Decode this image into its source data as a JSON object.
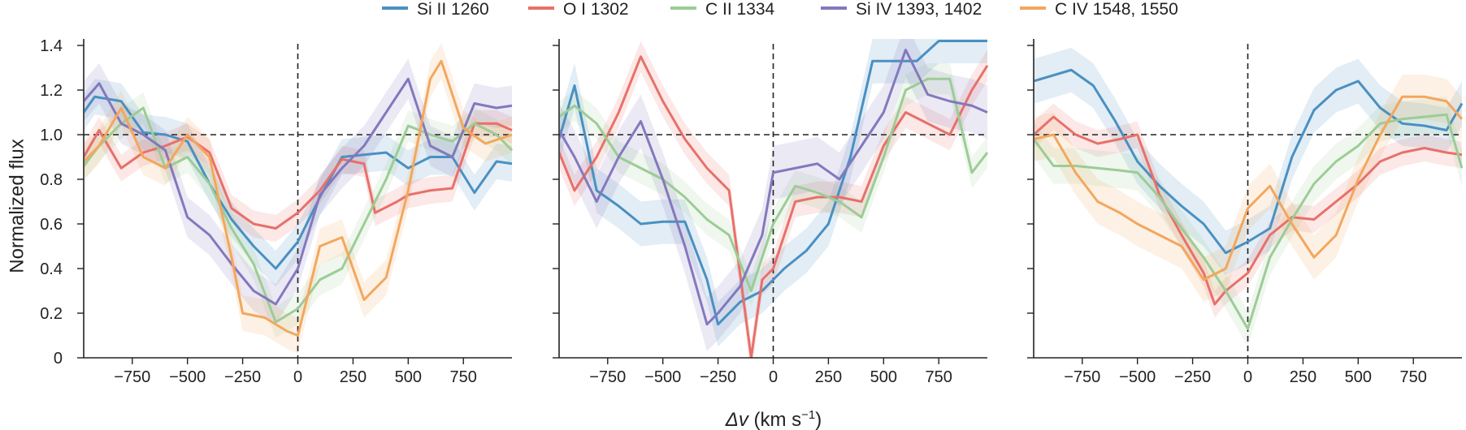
{
  "chart_data": {
    "type": "line",
    "ylabel": "Normalized flux",
    "xlabel_main": "Δv",
    "xlabel_unit": " (km s",
    "xlabel_exp": "−1",
    "xlabel_close": ")",
    "xlim": [
      -970,
      970
    ],
    "ylim": [
      0,
      1.4
    ],
    "x_ticks": [
      -750,
      -500,
      -250,
      0,
      250,
      500,
      750
    ],
    "x_tick_labels": [
      "−750",
      "−500",
      "−250",
      "0",
      "250",
      "500",
      "750"
    ],
    "y_ticks": [
      0,
      0.2,
      0.4,
      0.6,
      0.8,
      1.0,
      1.2,
      1.4
    ],
    "y_tick_labels": [
      "0",
      "0.2",
      "0.4",
      "0.6",
      "0.8",
      "1.0",
      "1.2",
      "1.4"
    ],
    "reference_lines": {
      "x": 0,
      "y": 1.0
    },
    "legend": [
      {
        "name": "Si II 1260",
        "color": "#4a90c2"
      },
      {
        "name": "O I 1302",
        "color": "#e8706a"
      },
      {
        "name": "C II 1334",
        "color": "#9ccc96"
      },
      {
        "name": "Si IV 1393, 1402",
        "color": "#8478bd"
      },
      {
        "name": "C IV 1548, 1550",
        "color": "#f2a75e"
      }
    ],
    "panels": [
      {
        "series": [
          {
            "legend_index": 0,
            "x": [
              -970,
              -920,
              -800,
              -700,
              -600,
              -500,
              -400,
              -300,
              -200,
              -100,
              0,
              100,
              200,
              300,
              400,
              500,
              600,
              700,
              800,
              900,
              970
            ],
            "y": [
              1.1,
              1.17,
              1.15,
              1.01,
              1.0,
              0.97,
              0.78,
              0.62,
              0.5,
              0.4,
              0.52,
              0.72,
              0.9,
              0.91,
              0.92,
              0.85,
              0.9,
              0.9,
              0.74,
              0.88,
              0.87
            ],
            "err": 0.08
          },
          {
            "legend_index": 1,
            "x": [
              -970,
              -900,
              -800,
              -700,
              -600,
              -500,
              -400,
              -300,
              -200,
              -100,
              0,
              100,
              200,
              300,
              350,
              450,
              500,
              600,
              700,
              800,
              900,
              970
            ],
            "y": [
              0.9,
              1.02,
              0.85,
              0.92,
              0.95,
              0.99,
              0.92,
              0.67,
              0.6,
              0.58,
              0.65,
              0.75,
              0.89,
              0.87,
              0.65,
              0.7,
              0.73,
              0.75,
              0.76,
              1.05,
              1.05,
              1.02
            ],
            "err": 0.06
          },
          {
            "legend_index": 2,
            "x": [
              -970,
              -900,
              -800,
              -700,
              -600,
              -500,
              -400,
              -300,
              -200,
              -100,
              0,
              100,
              200,
              300,
              400,
              500,
              600,
              700,
              800,
              900,
              970
            ],
            "y": [
              0.86,
              0.95,
              1.05,
              1.12,
              0.85,
              0.9,
              0.78,
              0.58,
              0.42,
              0.16,
              0.22,
              0.35,
              0.4,
              0.6,
              0.8,
              1.04,
              1.0,
              0.97,
              1.05,
              1.0,
              0.93
            ],
            "err": 0.07
          },
          {
            "legend_index": 3,
            "x": [
              -970,
              -900,
              -800,
              -700,
              -600,
              -500,
              -400,
              -300,
              -200,
              -100,
              0,
              100,
              200,
              300,
              400,
              500,
              600,
              700,
              800,
              900,
              970
            ],
            "y": [
              1.15,
              1.23,
              1.05,
              1.0,
              0.93,
              0.63,
              0.55,
              0.42,
              0.3,
              0.24,
              0.4,
              0.73,
              0.85,
              0.95,
              1.1,
              1.25,
              0.95,
              0.9,
              1.14,
              1.12,
              1.13
            ],
            "err": 0.09
          },
          {
            "legend_index": 4,
            "x": [
              -970,
              -900,
              -800,
              -700,
              -600,
              -500,
              -400,
              -300,
              -250,
              -150,
              -50,
              0,
              100,
              200,
              300,
              400,
              500,
              600,
              650,
              750,
              850,
              970
            ],
            "y": [
              0.88,
              0.95,
              1.12,
              0.9,
              0.85,
              1.0,
              0.9,
              0.45,
              0.2,
              0.18,
              0.12,
              0.1,
              0.5,
              0.54,
              0.26,
              0.36,
              0.75,
              1.25,
              1.33,
              1.03,
              0.96,
              1.0
            ],
            "err": 0.08
          }
        ]
      },
      {
        "series": [
          {
            "legend_index": 0,
            "x": [
              -970,
              -900,
              -800,
              -700,
              -600,
              -500,
              -400,
              -300,
              -250,
              -150,
              -50,
              50,
              150,
              250,
              350,
              450,
              550,
              650,
              750,
              850,
              970
            ],
            "y": [
              0.98,
              1.22,
              0.75,
              0.68,
              0.6,
              0.61,
              0.61,
              0.35,
              0.15,
              0.25,
              0.3,
              0.4,
              0.48,
              0.6,
              0.9,
              1.33,
              1.33,
              1.33,
              1.42,
              1.42,
              1.42
            ],
            "err": 0.1
          },
          {
            "legend_index": 1,
            "x": [
              -970,
              -900,
              -800,
              -700,
              -600,
              -500,
              -400,
              -300,
              -200,
              -100,
              -50,
              0,
              100,
              200,
              300,
              400,
              500,
              600,
              700,
              800,
              900,
              970
            ],
            "y": [
              0.92,
              0.75,
              0.9,
              1.1,
              1.35,
              1.15,
              0.98,
              0.85,
              0.75,
              0.0,
              0.35,
              0.4,
              0.7,
              0.72,
              0.72,
              0.7,
              0.95,
              1.1,
              1.05,
              1.0,
              1.2,
              1.31
            ],
            "err": 0.07
          },
          {
            "legend_index": 2,
            "x": [
              -970,
              -900,
              -800,
              -700,
              -600,
              -500,
              -400,
              -300,
              -200,
              -100,
              0,
              100,
              200,
              300,
              400,
              500,
              600,
              700,
              800,
              900,
              970
            ],
            "y": [
              1.08,
              1.13,
              1.05,
              0.9,
              0.85,
              0.8,
              0.72,
              0.62,
              0.55,
              0.3,
              0.6,
              0.77,
              0.74,
              0.7,
              0.63,
              0.9,
              1.2,
              1.25,
              1.25,
              0.83,
              0.92
            ],
            "err": 0.07
          },
          {
            "legend_index": 3,
            "x": [
              -970,
              -900,
              -800,
              -700,
              -600,
              -500,
              -400,
              -300,
              -250,
              -150,
              -50,
              0,
              100,
              200,
              300,
              400,
              500,
              600,
              700,
              800,
              900,
              970
            ],
            "y": [
              1.02,
              0.9,
              0.7,
              0.9,
              1.06,
              0.8,
              0.5,
              0.15,
              0.2,
              0.32,
              0.55,
              0.83,
              0.85,
              0.87,
              0.8,
              0.95,
              1.1,
              1.38,
              1.18,
              1.15,
              1.13,
              1.1
            ],
            "err": 0.12
          }
        ]
      },
      {
        "series": [
          {
            "legend_index": 0,
            "x": [
              -970,
              -800,
              -700,
              -600,
              -500,
              -400,
              -300,
              -200,
              -100,
              0,
              100,
              200,
              300,
              400,
              500,
              600,
              700,
              800,
              900,
              970
            ],
            "y": [
              1.24,
              1.29,
              1.22,
              1.06,
              0.88,
              0.77,
              0.68,
              0.6,
              0.47,
              0.52,
              0.58,
              0.9,
              1.11,
              1.2,
              1.24,
              1.12,
              1.05,
              1.04,
              1.02,
              1.14
            ],
            "err": 0.1
          },
          {
            "legend_index": 1,
            "x": [
              -970,
              -880,
              -780,
              -680,
              -580,
              -500,
              -400,
              -300,
              -200,
              -150,
              -100,
              0,
              100,
              200,
              300,
              400,
              500,
              600,
              700,
              800,
              900,
              970
            ],
            "y": [
              1.0,
              1.08,
              1.0,
              0.96,
              0.98,
              1.0,
              0.73,
              0.55,
              0.38,
              0.24,
              0.3,
              0.38,
              0.55,
              0.63,
              0.62,
              0.7,
              0.78,
              0.88,
              0.92,
              0.94,
              0.92,
              0.91
            ],
            "err": 0.06
          },
          {
            "legend_index": 2,
            "x": [
              -970,
              -880,
              -780,
              -680,
              -580,
              -500,
              -400,
              -300,
              -200,
              -100,
              0,
              100,
              200,
              300,
              400,
              500,
              600,
              700,
              800,
              900,
              970
            ],
            "y": [
              0.98,
              0.86,
              0.86,
              0.85,
              0.84,
              0.83,
              0.72,
              0.58,
              0.45,
              0.3,
              0.13,
              0.45,
              0.62,
              0.78,
              0.88,
              0.95,
              1.05,
              1.07,
              1.08,
              1.09,
              0.85
            ],
            "err": 0.08
          },
          {
            "legend_index": 4,
            "x": [
              -970,
              -880,
              -780,
              -680,
              -580,
              -500,
              -400,
              -300,
              -200,
              -100,
              0,
              100,
              200,
              300,
              400,
              500,
              600,
              700,
              800,
              900,
              970
            ],
            "y": [
              0.98,
              1.0,
              0.83,
              0.7,
              0.65,
              0.6,
              0.55,
              0.5,
              0.35,
              0.4,
              0.67,
              0.77,
              0.6,
              0.45,
              0.55,
              0.8,
              1.0,
              1.17,
              1.17,
              1.15,
              1.07
            ],
            "err": 0.1
          }
        ]
      }
    ]
  }
}
